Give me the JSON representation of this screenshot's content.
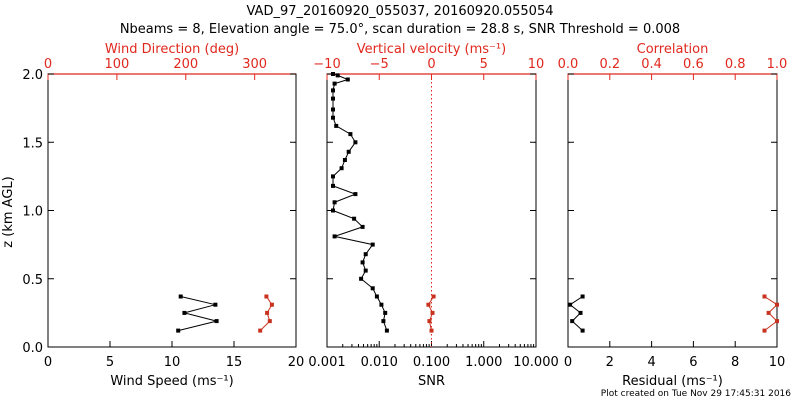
{
  "title": {
    "line1": "VAD_97_20160920_055037, 20160920.055054",
    "line2": "Nbeams = 8, Elevation angle = 75.0°, scan duration = 28.8 s, SNR Threshold = 0.008"
  },
  "footer": "Plot created on Tue Nov 29 17:45:31 2016",
  "colors": {
    "axis": "#000000",
    "secondary_axis": "#e0281e",
    "primary_series": "#000000",
    "secondary_series": "#c8321e"
  },
  "chart_data": [
    {
      "type": "line",
      "ylabel": "z (km AGL)",
      "ylim": [
        0,
        2
      ],
      "yticks": [
        "0.0",
        "0.5",
        "1.0",
        "1.5",
        "2.0"
      ],
      "bottom_axis": {
        "label": "Wind Speed (ms⁻¹)",
        "lim": [
          0,
          20
        ],
        "ticks": [
          "0",
          "5",
          "10",
          "15",
          "20"
        ]
      },
      "top_axis": {
        "label": "Wind Direction (deg)",
        "lim": [
          0,
          360
        ],
        "ticks": [
          "0",
          "100",
          "200",
          "300"
        ],
        "tick_values": [
          0,
          100,
          200,
          300
        ],
        "color": "#e0281e"
      },
      "series": [
        {
          "axis": "bottom",
          "color": "#000000",
          "points": [
            [
              10.7,
              0.37
            ],
            [
              13.5,
              0.31
            ],
            [
              11.0,
              0.25
            ],
            [
              13.6,
              0.19
            ],
            [
              10.5,
              0.12
            ]
          ]
        },
        {
          "axis": "top",
          "color": "#c8321e",
          "points": [
            [
              317,
              0.37
            ],
            [
              325,
              0.31
            ],
            [
              318,
              0.25
            ],
            [
              322,
              0.19
            ],
            [
              308,
              0.12
            ]
          ]
        }
      ]
    },
    {
      "type": "line",
      "ylim": [
        0,
        2
      ],
      "bottom_axis": {
        "label": "SNR",
        "scale": "log",
        "lim": [
          0.001,
          10
        ],
        "ticks": [
          "0.001",
          "0.010",
          "0.100",
          "1.000",
          "10.000"
        ],
        "tick_values": [
          0.001,
          0.01,
          0.1,
          1,
          10
        ]
      },
      "top_axis": {
        "label": "Vertical velocity (ms⁻¹)",
        "lim": [
          -10,
          10
        ],
        "ticks": [
          "−10",
          "−5",
          "0",
          "5",
          "10"
        ],
        "tick_values": [
          -10,
          -5,
          0,
          5,
          10
        ],
        "color": "#e0281e"
      },
      "reference_line": {
        "axis": "top",
        "value": 0,
        "style": "dotted",
        "color": "#e0281e"
      },
      "series": [
        {
          "axis": "bottom",
          "color": "#000000",
          "points": [
            [
              0.0013,
              2.0
            ],
            [
              0.0016,
              1.99
            ],
            [
              0.0025,
              1.96
            ],
            [
              0.0014,
              1.93
            ],
            [
              0.0013,
              1.88
            ],
            [
              0.0013,
              1.82
            ],
            [
              0.0013,
              1.74
            ],
            [
              0.0013,
              1.68
            ],
            [
              0.0015,
              1.62
            ],
            [
              0.0028,
              1.56
            ],
            [
              0.0035,
              1.5
            ],
            [
              0.0026,
              1.43
            ],
            [
              0.0022,
              1.37
            ],
            [
              0.0019,
              1.31
            ],
            [
              0.0013,
              1.25
            ],
            [
              0.0013,
              1.18
            ],
            [
              0.0035,
              1.12
            ],
            [
              0.0014,
              1.06
            ],
            [
              0.0013,
              1.0
            ],
            [
              0.0033,
              0.94
            ],
            [
              0.0048,
              0.88
            ],
            [
              0.0014,
              0.81
            ],
            [
              0.0075,
              0.75
            ],
            [
              0.0055,
              0.68
            ],
            [
              0.0048,
              0.62
            ],
            [
              0.0055,
              0.56
            ],
            [
              0.0045,
              0.5
            ],
            [
              0.0075,
              0.43
            ],
            [
              0.009,
              0.37
            ],
            [
              0.011,
              0.31
            ],
            [
              0.013,
              0.25
            ],
            [
              0.012,
              0.19
            ],
            [
              0.014,
              0.12
            ]
          ]
        },
        {
          "axis": "top",
          "color": "#c8321e",
          "points": [
            [
              0.2,
              0.37
            ],
            [
              -0.3,
              0.31
            ],
            [
              0.1,
              0.25
            ],
            [
              -0.2,
              0.19
            ],
            [
              0.0,
              0.12
            ]
          ]
        }
      ]
    },
    {
      "type": "line",
      "ylim": [
        0,
        2
      ],
      "bottom_axis": {
        "label": "Residual (ms⁻¹)",
        "lim": [
          0,
          10
        ],
        "ticks": [
          "0",
          "2",
          "4",
          "6",
          "8",
          "10"
        ]
      },
      "top_axis": {
        "label": "Correlation",
        "lim": [
          0,
          1
        ],
        "ticks": [
          "0.0",
          "0.2",
          "0.4",
          "0.6",
          "0.8",
          "1.0"
        ],
        "tick_values": [
          0,
          0.2,
          0.4,
          0.6,
          0.8,
          1.0
        ],
        "color": "#e0281e"
      },
      "series": [
        {
          "axis": "bottom",
          "color": "#000000",
          "points": [
            [
              0.7,
              0.37
            ],
            [
              0.1,
              0.31
            ],
            [
              0.6,
              0.25
            ],
            [
              0.2,
              0.19
            ],
            [
              0.7,
              0.12
            ]
          ]
        },
        {
          "axis": "top",
          "color": "#c8321e",
          "points": [
            [
              0.94,
              0.37
            ],
            [
              1.0,
              0.31
            ],
            [
              0.96,
              0.25
            ],
            [
              1.0,
              0.19
            ],
            [
              0.94,
              0.12
            ]
          ]
        }
      ]
    }
  ]
}
